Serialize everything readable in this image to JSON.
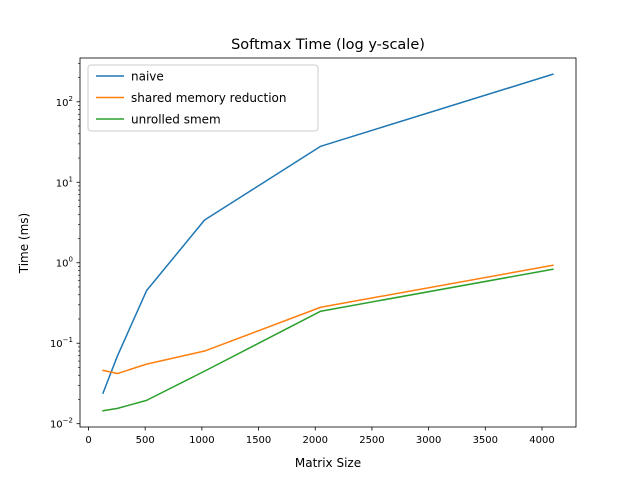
{
  "chart_data": {
    "type": "line",
    "title": "Softmax Time (log y-scale)",
    "xlabel": "Matrix Size",
    "ylabel": "Time (ms)",
    "yscale": "log",
    "xlim": [
      -75,
      4300
    ],
    "ylim": [
      0.0091,
      350
    ],
    "grid": false,
    "legend_position": "upper left",
    "x": [
      128,
      256,
      512,
      1024,
      2048,
      4096
    ],
    "x_ticks": [
      0,
      500,
      1000,
      1500,
      2000,
      2500,
      3000,
      3500,
      4000
    ],
    "y_ticks": [
      {
        "value": 0.01,
        "mantissa": "10",
        "exp": "−2"
      },
      {
        "value": 0.1,
        "mantissa": "10",
        "exp": "−1"
      },
      {
        "value": 1,
        "mantissa": "10",
        "exp": "0"
      },
      {
        "value": 10,
        "mantissa": "10",
        "exp": "1"
      },
      {
        "value": 100,
        "mantissa": "10",
        "exp": "2"
      }
    ],
    "series": [
      {
        "name": "naive",
        "color": "#1f77b4",
        "values": [
          0.024,
          0.07,
          0.45,
          3.4,
          28,
          220
        ]
      },
      {
        "name": "shared memory reduction",
        "color": "#ff7f0e",
        "values": [
          0.046,
          0.042,
          0.055,
          0.08,
          0.28,
          0.93
        ]
      },
      {
        "name": "unrolled smem",
        "color": "#2ca02c",
        "values": [
          0.0145,
          0.0155,
          0.0195,
          0.045,
          0.25,
          0.83
        ]
      }
    ]
  }
}
